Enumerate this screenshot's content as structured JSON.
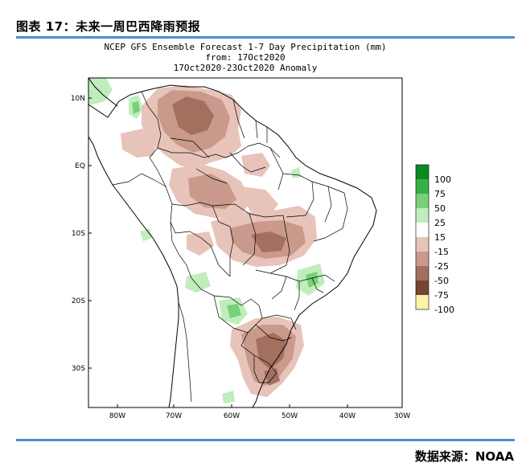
{
  "figure_title": "图表 17：未来一周巴西降雨预报",
  "source": "数据来源：NOAA",
  "map": {
    "title_line1": "NCEP GFS Ensemble Forecast 1-7 Day Precipitation (mm)",
    "title_line2": "from: 17Oct2020",
    "title_line3": "17Oct2020-23Oct2020 Anomaly",
    "lat_ticks": [
      "10N",
      "EQ",
      "10S",
      "20S",
      "30S"
    ],
    "lon_ticks": [
      "80W",
      "70W",
      "60W",
      "50W",
      "40W",
      "30W"
    ]
  },
  "legend": {
    "items": [
      {
        "label": "100",
        "color": "#0c8a22"
      },
      {
        "label": "75",
        "color": "#35b043"
      },
      {
        "label": "50",
        "color": "#78d079"
      },
      {
        "label": "25",
        "color": "#bfeebc"
      },
      {
        "label": "15",
        "color": "#ffffff"
      },
      {
        "label": "-15",
        "color": "#e7c3b9"
      },
      {
        "label": "-25",
        "color": "#c99a8c"
      },
      {
        "label": "-50",
        "color": "#a3705f"
      },
      {
        "label": "-75",
        "color": "#7a4530"
      },
      {
        "label": "-100",
        "color": "#fdf2a8"
      }
    ]
  },
  "colors": {
    "rule": "#4b8fcf",
    "dry_light": "#e7c3b9",
    "dry_mid": "#c99a8c",
    "dry_dark": "#a3705f",
    "wet_light": "#bfeebc",
    "wet_mid": "#78d079",
    "wet_dark": "#35b043"
  }
}
